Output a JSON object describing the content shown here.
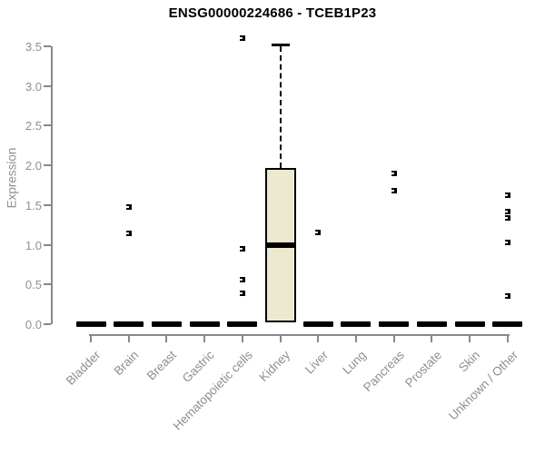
{
  "chart_data": {
    "type": "boxplot",
    "title": "ENSG00000224686 - TCEB1P23",
    "xlabel": "",
    "ylabel": "Expression",
    "ylim": [
      0,
      3.5
    ],
    "yticks": [
      0.0,
      0.5,
      1.0,
      1.5,
      2.0,
      2.5,
      3.0,
      3.5
    ],
    "grid": false,
    "categories": [
      "Bladder",
      "Brain",
      "Breast",
      "Gastric",
      "Hematopoietic cells",
      "Kidney",
      "Liver",
      "Lung",
      "Pancreas",
      "Prostate",
      "Skin",
      "Unknown / Other"
    ],
    "series": [
      {
        "category": "Bladder",
        "q1": 0,
        "median": 0,
        "q3": 0,
        "whisker_low": 0,
        "whisker_high": 0,
        "outliers": []
      },
      {
        "category": "Brain",
        "q1": 0,
        "median": 0,
        "q3": 0,
        "whisker_low": 0,
        "whisker_high": 0,
        "outliers": [
          1.47,
          1.14
        ]
      },
      {
        "category": "Breast",
        "q1": 0,
        "median": 0,
        "q3": 0,
        "whisker_low": 0,
        "whisker_high": 0,
        "outliers": []
      },
      {
        "category": "Gastric",
        "q1": 0,
        "median": 0,
        "q3": 0,
        "whisker_low": 0,
        "whisker_high": 0,
        "outliers": []
      },
      {
        "category": "Hematopoietic cells",
        "q1": 0,
        "median": 0,
        "q3": 0,
        "whisker_low": 0,
        "whisker_high": 0,
        "outliers": [
          3.6,
          0.95,
          0.56,
          0.39
        ]
      },
      {
        "category": "Kidney",
        "q1": 0.02,
        "median": 0.99,
        "q3": 1.97,
        "whisker_low": 0.02,
        "whisker_high": 3.52,
        "outliers": []
      },
      {
        "category": "Liver",
        "q1": 0,
        "median": 0,
        "q3": 0,
        "whisker_low": 0,
        "whisker_high": 0,
        "outliers": [
          1.15
        ]
      },
      {
        "category": "Lung",
        "q1": 0,
        "median": 0,
        "q3": 0,
        "whisker_low": 0,
        "whisker_high": 0,
        "outliers": []
      },
      {
        "category": "Pancreas",
        "q1": 0,
        "median": 0,
        "q3": 0,
        "whisker_low": 0,
        "whisker_high": 0,
        "outliers": [
          1.9,
          1.68
        ]
      },
      {
        "category": "Prostate",
        "q1": 0,
        "median": 0,
        "q3": 0,
        "whisker_low": 0,
        "whisker_high": 0,
        "outliers": []
      },
      {
        "category": "Skin",
        "q1": 0,
        "median": 0,
        "q3": 0,
        "whisker_low": 0,
        "whisker_high": 0,
        "outliers": []
      },
      {
        "category": "Unknown / Other",
        "q1": 0,
        "median": 0,
        "q3": 0,
        "whisker_low": 0,
        "whisker_high": 0,
        "outliers": [
          1.62,
          1.42,
          1.34,
          1.03,
          0.35
        ]
      }
    ],
    "colors": {
      "background": "#FFFFFF",
      "title": "#000000",
      "axis_line": "#888888",
      "tick_label": "#8F8F8F",
      "box_fill": "#EDE8D0",
      "box_border": "#000000",
      "median": "#000000",
      "outlier": "#000000"
    }
  }
}
